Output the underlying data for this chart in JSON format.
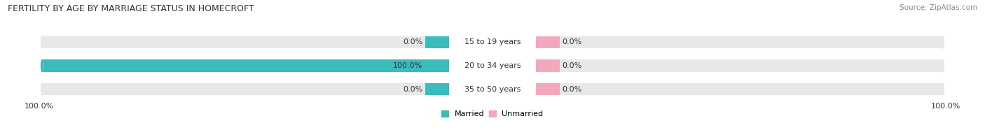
{
  "title": "FERTILITY BY AGE BY MARRIAGE STATUS IN HOMECROFT",
  "source": "Source: ZipAtlas.com",
  "categories": [
    "15 to 19 years",
    "20 to 34 years",
    "35 to 50 years"
  ],
  "married_values": [
    0.0,
    100.0,
    0.0
  ],
  "unmarried_values": [
    0.0,
    0.0,
    0.0
  ],
  "married_color": "#3abcbc",
  "unmarried_color": "#f4a8bc",
  "bar_bg_color": "#e8e8e8",
  "label_left_married": [
    "0.0%",
    "100.0%",
    "0.0%"
  ],
  "label_right_unmarried": [
    "0.0%",
    "0.0%",
    "0.0%"
  ],
  "left_axis_label": "100.0%",
  "right_axis_label": "100.0%",
  "title_fontsize": 9,
  "source_fontsize": 7.5,
  "label_fontsize": 8,
  "tick_fontsize": 8,
  "legend_fontsize": 8,
  "bg_color": "#ffffff"
}
